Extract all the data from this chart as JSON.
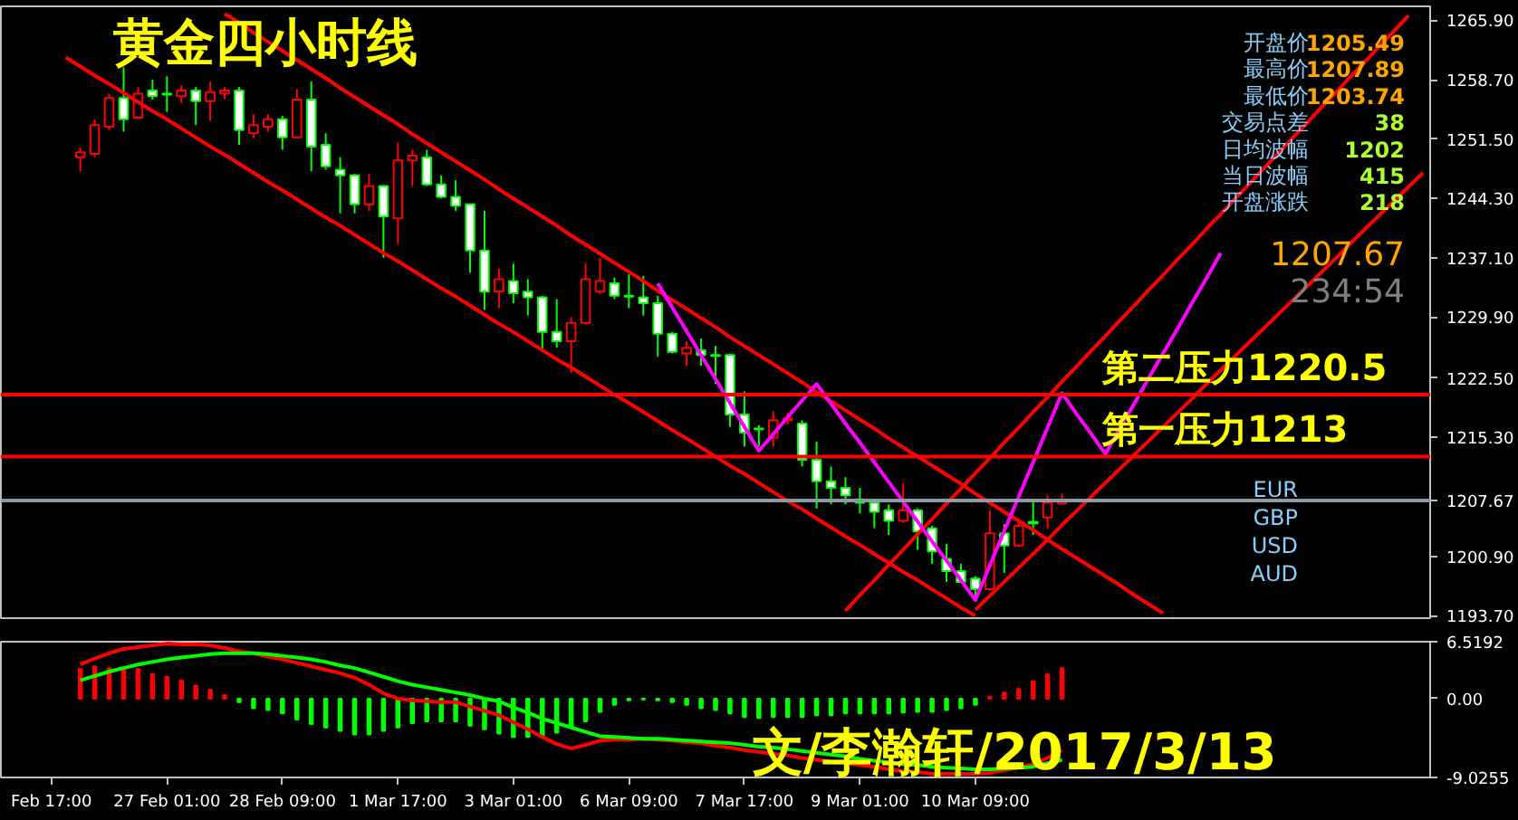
{
  "chart_data": [
    {
      "type": "candlestick",
      "title": "黄金四小时线",
      "tick_labels": "y",
      "grid": false,
      "categories": [
        null,
        null,
        null,
        null,
        null,
        null,
        null,
        null,
        null,
        null,
        null,
        null,
        null,
        null,
        null,
        null,
        null,
        null,
        null,
        null,
        null,
        null,
        null,
        null,
        null,
        null,
        null,
        null,
        null,
        null,
        null,
        null,
        null,
        null,
        null,
        null,
        null,
        null,
        null,
        null,
        null,
        null,
        null,
        null,
        null,
        null,
        null,
        null,
        null,
        null,
        null,
        null,
        null,
        null,
        null,
        null,
        null,
        null,
        null,
        null,
        null,
        null,
        null,
        null,
        null,
        null,
        null,
        null,
        null,
        null,
        null,
        null,
        null,
        null,
        null,
        null,
        null,
        null,
        null,
        null,
        null,
        null,
        null,
        null,
        null,
        null,
        null,
        null,
        null,
        null,
        null,
        null,
        null,
        null,
        null,
        null,
        null,
        null,
        null
      ],
      "ohlc": [
        null,
        null,
        null,
        null,
        null,
        [
          1249.3,
          1250.4,
          1247.6,
          1249.9
        ],
        [
          1249.7,
          1253.9,
          1249.3,
          1253.2
        ],
        [
          1253.0,
          1257.0,
          1252.6,
          1256.5
        ],
        [
          1256.5,
          1260.2,
          1252.4,
          1253.9
        ],
        [
          1254.1,
          1257.8,
          1253.9,
          1257.0
        ],
        [
          1257.4,
          1258.7,
          1256.3,
          1256.7
        ],
        [
          1257.0,
          1259.1,
          1254.8,
          1256.9
        ],
        [
          1256.7,
          1258.0,
          1255.9,
          1257.4
        ],
        [
          1257.4,
          1257.8,
          1253.2,
          1256.1
        ],
        [
          1256.1,
          1258.5,
          1253.7,
          1257.2
        ],
        [
          1257.0,
          1257.8,
          1256.3,
          1257.4
        ],
        [
          1257.4,
          1257.8,
          1250.8,
          1252.6
        ],
        [
          1252.2,
          1254.5,
          1251.7,
          1253.2
        ],
        [
          1253.0,
          1254.5,
          1252.4,
          1253.9
        ],
        [
          1253.9,
          1254.3,
          1250.2,
          1251.7
        ],
        [
          1251.7,
          1257.6,
          1251.6,
          1256.3
        ],
        [
          1256.3,
          1258.5,
          1247.6,
          1250.6
        ],
        [
          1250.8,
          1252.2,
          1247.8,
          1248.2
        ],
        [
          1247.8,
          1249.3,
          1242.5,
          1247.1
        ],
        [
          1247.1,
          1247.3,
          1242.5,
          1243.6
        ],
        [
          1243.6,
          1247.3,
          1242.8,
          1245.8
        ],
        [
          1245.8,
          1245.9,
          1237.1,
          1242.1
        ],
        [
          1241.9,
          1251.1,
          1238.8,
          1248.9
        ],
        [
          1248.9,
          1250.2,
          1245.8,
          1249.5
        ],
        [
          1249.3,
          1250.2,
          1245.8,
          1246.0
        ],
        [
          1246.0,
          1247.1,
          1244.3,
          1244.5
        ],
        [
          1244.5,
          1246.5,
          1242.8,
          1243.4
        ],
        [
          1243.6,
          1243.7,
          1235.3,
          1238.0
        ],
        [
          1238.0,
          1242.8,
          1230.8,
          1233.0
        ],
        [
          1233.0,
          1235.8,
          1231.0,
          1234.5
        ],
        [
          1234.3,
          1236.4,
          1231.6,
          1232.8
        ],
        [
          1233.0,
          1234.5,
          1230.1,
          1232.3
        ],
        [
          1232.3,
          1232.5,
          1225.7,
          1228.1
        ],
        [
          1228.1,
          1232.1,
          1226.2,
          1227.0
        ],
        [
          1227.0,
          1229.9,
          1223.1,
          1229.2
        ],
        [
          1229.2,
          1236.4,
          1229.0,
          1234.5
        ],
        [
          1233.0,
          1237.1,
          1232.7,
          1234.3
        ],
        [
          1234.0,
          1234.7,
          1232.1,
          1232.5
        ],
        [
          1232.5,
          1235.1,
          1231.0,
          1232.4
        ],
        [
          1232.3,
          1234.9,
          1230.1,
          1231.6
        ],
        [
          1231.6,
          1232.5,
          1225.1,
          1227.9
        ],
        [
          1227.9,
          1228.1,
          1225.5,
          1225.7
        ],
        [
          1225.5,
          1227.0,
          1224.0,
          1226.2
        ],
        [
          1225.9,
          1227.3,
          1224.0,
          1225.3
        ],
        [
          1225.3,
          1226.4,
          1221.8,
          1225.2
        ],
        [
          1225.3,
          1225.5,
          1216.6,
          1218.1
        ],
        [
          1218.1,
          1220.9,
          1214.2,
          1215.9
        ],
        [
          1216.4,
          1216.8,
          1214.2,
          1216.3
        ],
        [
          1215.3,
          1218.5,
          1214.2,
          1217.4
        ],
        [
          1217.4,
          1218.3,
          1216.9,
          1217.6
        ],
        [
          1217.0,
          1217.4,
          1211.8,
          1212.6
        ],
        [
          1212.6,
          1214.8,
          1206.7,
          1210.0
        ],
        [
          1210.0,
          1211.8,
          1207.2,
          1209.2
        ],
        [
          1209.2,
          1210.5,
          1207.2,
          1208.3
        ],
        [
          1207.8,
          1209.2,
          1206.1,
          1207.4
        ],
        [
          1207.4,
          1207.8,
          1204.3,
          1206.3
        ],
        [
          1206.5,
          1207.2,
          1203.5,
          1205.2
        ],
        [
          1205.2,
          1209.8,
          1205.0,
          1206.5
        ],
        [
          1206.5,
          1206.7,
          1201.7,
          1203.9
        ],
        [
          1204.3,
          1204.6,
          1200.0,
          1201.5
        ],
        [
          1200.6,
          1202.4,
          1197.8,
          1199.1
        ],
        [
          1199.1,
          1200.0,
          1197.6,
          1197.8
        ],
        [
          1198.2,
          1198.5,
          1195.6,
          1196.9
        ],
        [
          1196.9,
          1206.5,
          1196.7,
          1203.7
        ],
        [
          1203.7,
          1204.8,
          1198.9,
          1202.2
        ],
        [
          1202.2,
          1205.4,
          1202.0,
          1204.6
        ],
        [
          1205.1,
          1207.6,
          1203.5,
          1204.9
        ],
        [
          1205.6,
          1208.3,
          1204.3,
          1207.4
        ],
        [
          1207.3,
          1208.5,
          1207.2,
          1207.67
        ],
        null,
        null,
        null,
        null,
        null,
        null,
        null,
        null,
        null,
        null,
        null,
        null,
        null,
        null,
        null,
        null,
        null,
        null,
        null,
        null,
        null,
        null,
        null,
        null,
        null
      ],
      "colors": [
        null,
        null,
        null,
        null,
        null,
        "#ff0000",
        "#ff0000",
        "#ff0000",
        "#00ff00",
        "#ff0000",
        "#00ff00",
        "#00ff00",
        "#ff0000",
        "#00ff00",
        "#ff0000",
        "#ff0000",
        "#00ff00",
        "#ff0000",
        "#ff0000",
        "#00ff00",
        "#ff0000",
        "#00ff00",
        "#00ff00",
        "#00ff00",
        "#00ff00",
        "#ff0000",
        "#00ff00",
        "#ff0000",
        "#ff0000",
        "#00ff00",
        "#00ff00",
        "#00ff00",
        "#00ff00",
        "#00ff00",
        "#ff0000",
        "#00ff00",
        "#00ff00",
        "#00ff00",
        "#00ff00",
        "#ff0000",
        "#ff0000",
        "#ff0000",
        "#00ff00",
        "#00ff00",
        "#00ff00",
        "#00ff00",
        "#00ff00",
        "#ff0000",
        "#00ff00",
        "#00ff00",
        "#00ff00",
        "#00ff00",
        "#00ff00",
        "#ff0000",
        "#ff0000",
        "#00ff00",
        "#00ff00",
        "#00ff00",
        "#00ff00",
        "#00ff00",
        "#00ff00",
        "#00ff00",
        "#ff0000",
        "#00ff00",
        "#00ff00",
        "#00ff00",
        "#00ff00",
        "#00ff00",
        "#ff0000",
        "#00ff00",
        "#ff0000",
        "#00ff00",
        "#ff0000",
        "#ff0000",
        null,
        null,
        null,
        null,
        null,
        null,
        null,
        null,
        null,
        null,
        null,
        null,
        null,
        null,
        null,
        null,
        null,
        null,
        null,
        null,
        null,
        null,
        null,
        null,
        null
      ],
      "ylim": [
        1193.4,
        1267.6
      ],
      "yticks": [
        {
          "value": 1193.7,
          "label": "1193.70"
        },
        {
          "value": 1200.9,
          "label": "1200.90"
        },
        1207.67,
        {
          "value": 1215.3,
          "label": "1215.30"
        },
        {
          "value": 1222.5,
          "label": "1222.50"
        },
        {
          "value": 1229.9,
          "label": "1229.90"
        },
        {
          "value": 1237.1,
          "label": "1237.10"
        },
        {
          "value": 1244.3,
          "label": "1244.30"
        },
        {
          "value": 1251.5,
          "label": "1251.50"
        },
        {
          "value": 1258.7,
          "label": "1258.70"
        },
        {
          "value": 1265.9,
          "label": "1265.90"
        }
      ],
      "series": [
        {
          "type": "line",
          "color": "#ff0000",
          "values": [
            null,
            null,
            null,
            null,
            null,
            null,
            null,
            null,
            null,
            null,
            null,
            null,
            null,
            null,
            null,
            1266.7,
            1265.6,
            1264.4,
            1263.3,
            1262.2,
            1261.1,
            1260.0,
            1258.9,
            1257.7,
            1256.6,
            1255.5,
            1254.4,
            1253.3,
            1252.1,
            1251.0,
            1249.9,
            1248.8,
            1247.7,
            1246.6,
            1245.4,
            1244.3,
            1243.2,
            1242.1,
            1241.0,
            1239.8,
            1238.7,
            1237.6,
            1236.5,
            1235.4,
            1234.3,
            1233.1,
            1232.0,
            1230.9,
            1229.8,
            1228.7,
            1227.5,
            1226.4,
            1225.3,
            1224.2,
            1223.1,
            1222.0,
            1220.8,
            1219.7,
            1218.6,
            1217.5,
            1216.4,
            1215.2,
            1214.1,
            1213.0,
            1211.9,
            1210.8,
            1209.7,
            1208.5,
            1207.4,
            1206.3,
            1205.2,
            1204.1,
            1202.9,
            1201.8,
            1200.7,
            1199.6,
            1198.5,
            1197.4,
            1196.2,
            1195.1,
            1194.0,
            null,
            null,
            null,
            null,
            null,
            null,
            null,
            null,
            null,
            null,
            null,
            null,
            null,
            null,
            null,
            null,
            null,
            null
          ]
        },
        {
          "type": "line",
          "color": "#ff0000",
          "values": [
            null,
            null,
            null,
            null,
            1261.4,
            1260.3,
            1259.2,
            1258.2,
            1257.1,
            1256.0,
            1254.9,
            1253.9,
            1252.8,
            1251.7,
            1250.6,
            1249.6,
            1248.5,
            1247.4,
            1246.3,
            1245.3,
            1244.2,
            1243.1,
            1242.0,
            1241.0,
            1239.9,
            1238.8,
            1237.7,
            1236.7,
            1235.6,
            1234.5,
            1233.4,
            1232.4,
            1231.3,
            1230.2,
            1229.1,
            1228.1,
            1227.0,
            1225.9,
            1224.8,
            1223.8,
            1222.7,
            1221.6,
            1220.5,
            1219.5,
            1218.4,
            1217.3,
            1216.2,
            1215.2,
            1214.1,
            1213.0,
            1211.9,
            1210.9,
            1209.8,
            1208.7,
            1207.6,
            1206.6,
            1205.5,
            1204.4,
            1203.3,
            1202.3,
            1201.2,
            1200.1,
            1199.0,
            1198.0,
            1196.9,
            1195.8,
            1194.7,
            1193.7,
            null,
            null,
            null,
            null,
            null,
            null,
            null,
            null,
            null,
            null,
            null,
            null,
            null,
            null,
            null,
            null,
            null,
            null,
            null,
            null,
            null,
            null,
            null,
            null,
            null,
            null,
            null,
            null,
            null,
            null,
            null
          ]
        },
        {
          "type": "line",
          "color": "#ff0000",
          "values": [
            null,
            null,
            null,
            null,
            null,
            null,
            null,
            null,
            null,
            null,
            null,
            null,
            null,
            null,
            null,
            null,
            null,
            null,
            null,
            null,
            null,
            null,
            null,
            null,
            null,
            null,
            null,
            null,
            null,
            null,
            null,
            null,
            null,
            null,
            null,
            null,
            null,
            null,
            null,
            null,
            null,
            null,
            null,
            null,
            null,
            null,
            null,
            null,
            null,
            null,
            null,
            null,
            null,
            null,
            null,
            null,
            null,
            null,
            1194.3,
            1196.2,
            1198.0,
            1199.9,
            1201.7,
            1203.6,
            1205.4,
            1207.3,
            1209.1,
            1211.0,
            1212.8,
            1214.7,
            1216.5,
            1218.4,
            1220.2,
            1222.1,
            1223.9,
            1225.8,
            1227.6,
            1229.5,
            1231.3,
            1233.2,
            1235.0,
            1236.9,
            1238.7,
            1240.6,
            1242.4,
            1244.3,
            1246.1,
            1248.0,
            1249.8,
            1251.7,
            1253.5,
            1255.4,
            1257.2,
            1259.1,
            1260.9,
            1262.8,
            1264.6,
            1266.5,
            null
          ]
        },
        {
          "type": "line",
          "color": "#ff0000",
          "values": [
            null,
            null,
            null,
            null,
            null,
            null,
            null,
            null,
            null,
            null,
            null,
            null,
            null,
            null,
            null,
            null,
            null,
            null,
            null,
            null,
            null,
            null,
            null,
            null,
            null,
            null,
            null,
            null,
            null,
            null,
            null,
            null,
            null,
            null,
            null,
            null,
            null,
            null,
            null,
            null,
            null,
            null,
            null,
            null,
            null,
            null,
            null,
            null,
            null,
            null,
            null,
            null,
            null,
            null,
            null,
            null,
            null,
            null,
            null,
            null,
            null,
            null,
            null,
            null,
            null,
            null,
            null,
            1194.4,
            1196.1,
            1197.8,
            1199.5,
            1201.2,
            1202.9,
            1204.7,
            1206.4,
            1208.1,
            1209.8,
            1211.5,
            1213.2,
            1214.9,
            1216.6,
            1218.3,
            1220.0,
            1221.8,
            1223.5,
            1225.2,
            1226.9,
            1228.6,
            1230.3,
            1232.0,
            1233.7,
            1235.4,
            1237.1,
            1238.9,
            1240.6,
            1242.3,
            1244.0,
            1245.7,
            1247.4
          ]
        },
        {
          "type": "line",
          "color": "#ff00ff",
          "values": [
            null,
            null,
            null,
            null,
            null,
            null,
            null,
            null,
            null,
            null,
            null,
            null,
            null,
            null,
            null,
            null,
            null,
            null,
            null,
            null,
            null,
            null,
            null,
            null,
            null,
            null,
            null,
            null,
            null,
            null,
            null,
            null,
            null,
            null,
            null,
            null,
            null,
            null,
            null,
            null,
            null,
            null,
            null,
            null,
            null,
            1234.0,
            1231.1,
            1228.2,
            1225.3,
            1222.4,
            1219.5,
            1216.6,
            1213.7,
            1215.7,
            1217.8,
            1219.8,
            1221.8,
            1219.4,
            1217.0,
            1214.7,
            1212.3,
            1209.9,
            1207.5,
            1205.1,
            1202.7,
            1200.4,
            1198.0,
            1195.6,
            1199.8,
            1204.0,
            1208.1,
            1212.3,
            1216.5,
            1220.7,
            1218.2,
            1215.8,
            1213.3,
            1216.4,
            1219.4,
            1222.5,
            1225.5,
            1228.5,
            1231.6,
            1234.6,
            1237.7,
            null,
            null,
            null,
            null,
            null,
            null,
            null,
            null,
            null,
            null,
            null,
            null,
            null,
            null
          ]
        }
      ],
      "ref_lines": [
        {
          "axis": "y",
          "value": 1220.5,
          "label": "第二压力1220.5",
          "color": "#ff0000"
        },
        {
          "axis": "y",
          "value": 1213,
          "label": "第一压力1213",
          "color": "#ff0000"
        },
        {
          "axis": "y",
          "value": 1207.67,
          "label": null,
          "color": "#8a9aa8"
        }
      ],
      "annotations": [
        "开盘价",
        "1205.49",
        "最高价",
        "1207.89",
        "最低价",
        "1203.74",
        "交易点差",
        "38",
        "日均波幅",
        "1202",
        "当日波幅",
        "415",
        "开盘涨跌",
        "218",
        "1207.67",
        "234:54",
        "EUR",
        "GBP",
        "USD",
        "AUD"
      ]
    },
    {
      "type": "bar",
      "grid": false,
      "categories": [
        null,
        null,
        null,
        "Feb 17:00",
        null,
        null,
        null,
        null,
        null,
        null,
        null,
        "27 Feb 01:00",
        null,
        null,
        null,
        null,
        null,
        null,
        null,
        "28 Feb 09:00",
        null,
        null,
        null,
        null,
        null,
        null,
        null,
        "1 Mar 17:00",
        null,
        null,
        null,
        null,
        null,
        null,
        null,
        "3 Mar 01:00",
        null,
        null,
        null,
        null,
        null,
        null,
        null,
        "6 Mar 09:00",
        null,
        null,
        null,
        null,
        null,
        null,
        null,
        "7 Mar 17:00",
        null,
        null,
        null,
        null,
        null,
        null,
        null,
        "9 Mar 01:00",
        null,
        null,
        null,
        null,
        null,
        null,
        null,
        "10 Mar 09:00",
        null,
        null,
        null,
        null,
        null,
        null,
        null,
        null,
        null,
        null,
        null,
        null,
        null,
        null,
        null,
        null,
        null,
        null,
        null,
        null,
        null,
        null,
        null,
        null,
        null,
        null,
        null,
        null,
        null,
        null,
        null
      ],
      "ylim": [
        -9.0255,
        6.5192
      ],
      "yticks": [
        -9.0255,
        {
          "value": 0,
          "label": "0.00"
        },
        6.5192
      ],
      "series": [
        {
          "type": "bar",
          "values": [
            null,
            null,
            null,
            null,
            null,
            3.4,
            3.7,
            3.5,
            3.5,
            3.4,
            2.8,
            2.5,
            2.1,
            1.5,
            1.0,
            0.4,
            -0.4,
            -1.1,
            -1.3,
            -1.7,
            -2.4,
            -2.9,
            -3.3,
            -3.7,
            -4.1,
            -4.1,
            -3.7,
            -3.3,
            -2.8,
            -2.6,
            -2.6,
            -2.6,
            -3.1,
            -3.5,
            -4.0,
            -4.4,
            -4.4,
            -4.4,
            -3.9,
            -3.3,
            -2.6,
            -1.5,
            -0.7,
            -0.2,
            -0.1,
            -0.2,
            -0.4,
            -0.7,
            -1.1,
            -1.3,
            -1.7,
            -2.1,
            -2.2,
            -2.1,
            -2.1,
            -2.1,
            -1.9,
            -1.9,
            -1.7,
            -1.7,
            -1.7,
            -1.7,
            -1.6,
            -1.5,
            -1.5,
            -1.3,
            -1.1,
            -0.7,
            0.2,
            0.7,
            1.1,
            2.0,
            2.8,
            3.5,
            null,
            null,
            null,
            null,
            null,
            null,
            null,
            null,
            null,
            null,
            null,
            null,
            null,
            null,
            null,
            null,
            null,
            null,
            null,
            null,
            null,
            null,
            null,
            null,
            null
          ],
          "colors": [
            null,
            null,
            null,
            null,
            null,
            "#ff0000",
            "#ff0000",
            "#ff0000",
            "#ff0000",
            "#ff0000",
            "#ff0000",
            "#ff0000",
            "#ff0000",
            "#ff0000",
            "#ff0000",
            "#ff0000",
            "#00ff00",
            "#00ff00",
            "#00ff00",
            "#00ff00",
            "#00ff00",
            "#00ff00",
            "#00ff00",
            "#00ff00",
            "#00ff00",
            "#00ff00",
            "#00ff00",
            "#00ff00",
            "#00ff00",
            "#00ff00",
            "#00ff00",
            "#00ff00",
            "#00ff00",
            "#00ff00",
            "#00ff00",
            "#00ff00",
            "#00ff00",
            "#00ff00",
            "#00ff00",
            "#00ff00",
            "#00ff00",
            "#00ff00",
            "#00ff00",
            "#00ff00",
            "#00ff00",
            "#00ff00",
            "#00ff00",
            "#00ff00",
            "#00ff00",
            "#00ff00",
            "#00ff00",
            "#00ff00",
            "#00ff00",
            "#00ff00",
            "#00ff00",
            "#00ff00",
            "#00ff00",
            "#00ff00",
            "#00ff00",
            "#00ff00",
            "#00ff00",
            "#00ff00",
            "#00ff00",
            "#00ff00",
            "#00ff00",
            "#00ff00",
            "#00ff00",
            "#00ff00",
            "#ff0000",
            "#ff0000",
            "#ff0000",
            "#ff0000",
            "#ff0000",
            "#ff0000",
            null,
            null,
            null,
            null,
            null,
            null,
            null,
            null,
            null,
            null,
            null,
            null,
            null,
            null,
            null,
            null,
            null,
            null,
            null,
            null,
            null,
            null,
            null,
            null,
            null
          ]
        },
        {
          "type": "line",
          "color": "#ff0000",
          "values": [
            null,
            null,
            null,
            null,
            null,
            3.9,
            4.6,
            5.2,
            5.7,
            5.9,
            6.1,
            6.3,
            6.2,
            6.2,
            6.1,
            5.8,
            5.4,
            5.2,
            4.8,
            4.5,
            4.1,
            3.7,
            3.3,
            2.9,
            2.4,
            1.6,
            0.6,
            0.0,
            -0.2,
            -0.3,
            -0.4,
            -0.4,
            -0.9,
            -1.4,
            -1.9,
            -2.7,
            -3.5,
            -4.4,
            -5.2,
            -5.7,
            -5.3,
            -4.8,
            -4.7,
            -4.7,
            -4.6,
            -4.7,
            -4.8,
            -5.0,
            -5.1,
            -5.4,
            -5.6,
            -5.9,
            -6.1,
            -6.3,
            -6.5,
            -6.8,
            -7.0,
            -7.2,
            -7.4,
            -7.6,
            -7.8,
            -8.1,
            -8.3,
            -8.4,
            -8.6,
            -8.6,
            -8.6,
            -8.6,
            -8.5,
            -8.2,
            -7.9,
            -7.5,
            -6.8,
            -5.9,
            null,
            null,
            null,
            null,
            null,
            null,
            null,
            null,
            null,
            null,
            null,
            null,
            null,
            null,
            null,
            null,
            null,
            null,
            null,
            null,
            null,
            null,
            null,
            null,
            null
          ]
        },
        {
          "type": "line",
          "color": "#00ff00",
          "values": [
            null,
            null,
            null,
            null,
            null,
            2.1,
            2.6,
            3.1,
            3.5,
            3.9,
            4.2,
            4.5,
            4.7,
            4.9,
            5.1,
            5.2,
            5.2,
            5.2,
            5.1,
            4.9,
            4.7,
            4.5,
            4.2,
            3.8,
            3.5,
            3.0,
            2.5,
            2.0,
            1.6,
            1.3,
            1.0,
            0.7,
            0.4,
            0.0,
            -0.3,
            -1.0,
            -1.6,
            -2.3,
            -2.8,
            -3.3,
            -3.8,
            -4.3,
            -4.4,
            -4.5,
            -4.6,
            -4.6,
            -4.7,
            -4.8,
            -4.9,
            -5.0,
            -5.1,
            -5.3,
            -5.5,
            -5.6,
            -5.8,
            -6.0,
            -6.2,
            -6.4,
            -6.6,
            -6.9,
            -7.1,
            -7.3,
            -7.5,
            -7.6,
            -7.8,
            -7.9,
            -8.0,
            -8.1,
            -8.1,
            -8.0,
            -7.9,
            -7.8,
            -7.4,
            -7.0,
            null,
            null,
            null,
            null,
            null,
            null,
            null,
            null,
            null,
            null,
            null,
            null,
            null,
            null,
            null,
            null,
            null,
            null,
            null,
            null,
            null,
            null,
            null,
            null,
            null
          ]
        }
      ],
      "annotations": [
        "文/李瀚轩/2017/3/13"
      ]
    }
  ]
}
